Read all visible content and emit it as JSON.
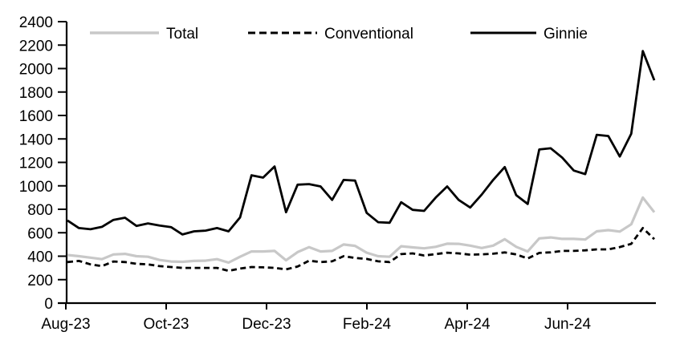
{
  "chart_data": {
    "type": "line",
    "title": "",
    "xlabel": "",
    "ylabel": "",
    "ylim": [
      0,
      2400
    ],
    "y_tick_step": 200,
    "y_tick_labels": [
      "0",
      "200",
      "400",
      "600",
      "800",
      "1000",
      "1200",
      "1400",
      "1600",
      "1800",
      "2000",
      "2200",
      "2400"
    ],
    "x_tick_labels": [
      "Aug-23",
      "Oct-23",
      "Dec-23",
      "Feb-24",
      "Apr-24",
      "Jun-24"
    ],
    "x_unit": "weekly observations, Aug-2023 through late Jul-2024",
    "grid": false,
    "legend_position": "top",
    "background_color": "#ffffff",
    "axis_color": "#000000",
    "series": [
      {
        "name": "Total",
        "color": "#c8c8c8",
        "style": "solid",
        "values": [
          410,
          400,
          388,
          375,
          415,
          420,
          400,
          395,
          368,
          355,
          352,
          360,
          362,
          375,
          345,
          395,
          440,
          440,
          445,
          365,
          435,
          477,
          440,
          445,
          500,
          488,
          430,
          400,
          395,
          485,
          475,
          467,
          480,
          507,
          505,
          490,
          470,
          490,
          545,
          480,
          440,
          552,
          560,
          548,
          548,
          542,
          612,
          622,
          610,
          672,
          900,
          775
        ]
      },
      {
        "name": "Conventional",
        "color": "#000000",
        "style": "dashed",
        "values": [
          350,
          360,
          330,
          315,
          355,
          350,
          335,
          330,
          315,
          308,
          300,
          300,
          300,
          300,
          275,
          295,
          308,
          305,
          300,
          288,
          312,
          362,
          350,
          356,
          400,
          385,
          377,
          356,
          350,
          418,
          424,
          406,
          418,
          430,
          424,
          413,
          416,
          421,
          432,
          415,
          380,
          428,
          433,
          445,
          445,
          450,
          458,
          458,
          478,
          505,
          640,
          545
        ]
      },
      {
        "name": "Ginnie",
        "color": "#000000",
        "style": "solid",
        "values": [
          705,
          640,
          630,
          650,
          710,
          728,
          658,
          680,
          662,
          648,
          585,
          612,
          618,
          640,
          612,
          730,
          1090,
          1070,
          1165,
          775,
          1010,
          1015,
          995,
          880,
          1050,
          1045,
          770,
          690,
          685,
          860,
          795,
          786,
          900,
          995,
          880,
          815,
          925,
          1050,
          1160,
          920,
          845,
          1310,
          1320,
          1240,
          1130,
          1100,
          1435,
          1425,
          1250,
          1445,
          2150,
          1900
        ]
      }
    ]
  }
}
